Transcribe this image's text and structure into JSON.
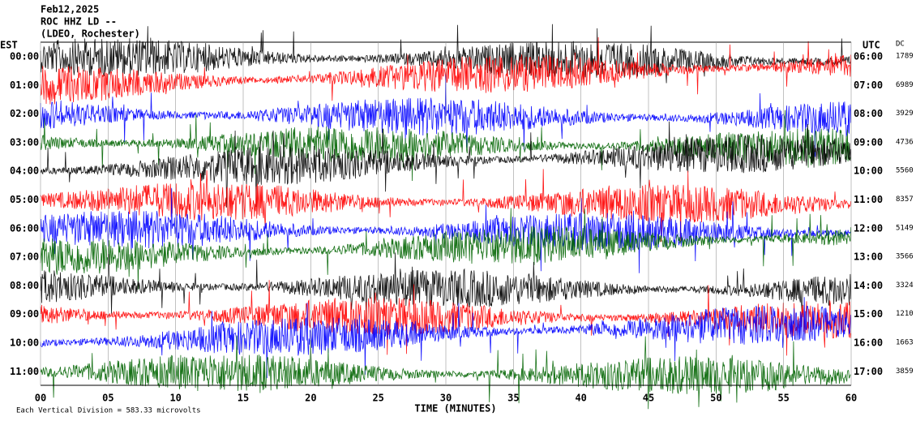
{
  "chart_data": {
    "type": "helicorder",
    "title": "Feb12,2025",
    "subtitle": "ROC HHZ LD --",
    "network": "(LDEO, Rochester)",
    "left_axis_label": "EST",
    "right_axis_label": "UTC",
    "dc_label": "DC",
    "xlabel": "TIME (MINUTES)",
    "footnote": "Each Vertical Division = 583.33 microvolts",
    "xlim": [
      0,
      60
    ],
    "xticks": [
      {
        "value": 0,
        "label": "00"
      },
      {
        "value": 5,
        "label": "05"
      },
      10,
      15,
      20,
      25,
      30,
      35,
      40,
      45,
      50,
      55,
      60
    ],
    "rows": [
      {
        "est": "00:00",
        "utc": "06:00",
        "dc": 1789,
        "color": "#000000"
      },
      {
        "est": "01:00",
        "utc": "07:00",
        "dc": 6989,
        "color": "#ff0000"
      },
      {
        "est": "02:00",
        "utc": "08:00",
        "dc": 3929,
        "color": "#0000ff"
      },
      {
        "est": "03:00",
        "utc": "09:00",
        "dc": 4736,
        "color": "#006400"
      },
      {
        "est": "04:00",
        "utc": "10:00",
        "dc": 5560,
        "color": "#000000"
      },
      {
        "est": "05:00",
        "utc": "11:00",
        "dc": 8357,
        "color": "#ff0000"
      },
      {
        "est": "06:00",
        "utc": "12:00",
        "dc": 5149,
        "color": "#0000ff"
      },
      {
        "est": "07:00",
        "utc": "13:00",
        "dc": 3566,
        "color": "#006400"
      },
      {
        "est": "08:00",
        "utc": "14:00",
        "dc": 3324,
        "color": "#000000"
      },
      {
        "est": "09:00",
        "utc": "15:00",
        "dc": 1210,
        "color": "#ff0000"
      },
      {
        "est": "10:00",
        "utc": "16:00",
        "dc": 1663,
        "color": "#0000ff"
      },
      {
        "est": "11:00",
        "utc": "17:00",
        "dc": 3859,
        "color": "#006400"
      }
    ]
  }
}
